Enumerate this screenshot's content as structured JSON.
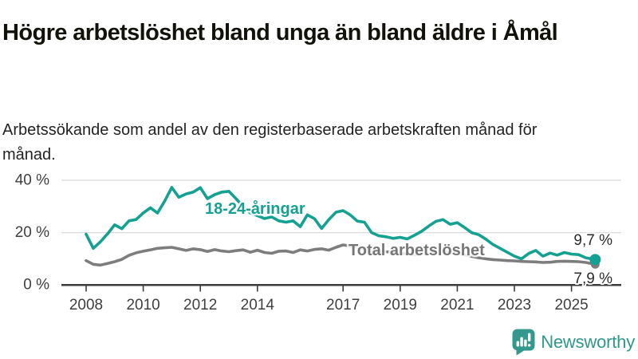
{
  "header": {
    "title": "Högre arbetslöshet bland unga än bland äldre i Åmål",
    "subtitle": "Arbetssökande som andel av den registerbaserade arbetskraften månad för månad."
  },
  "chart_data": {
    "type": "line",
    "title": "Högre arbetslöshet bland unga än bland äldre i Åmål",
    "xlabel": "",
    "ylabel": "",
    "x_unit": "decimal year (monthly share series, 2008–2025)",
    "grid": "horizontal",
    "legend_position": "inline-labels-on-lines",
    "xlim": [
      2007.15,
      2026.75
    ],
    "ylim": [
      0,
      44
    ],
    "x": [
      2008.0,
      2008.25,
      2008.5,
      2008.75,
      2009.0,
      2009.25,
      2009.5,
      2009.75,
      2010.0,
      2010.25,
      2010.5,
      2010.75,
      2011.0,
      2011.25,
      2011.5,
      2011.75,
      2012.0,
      2012.25,
      2012.5,
      2012.75,
      2013.0,
      2013.25,
      2013.5,
      2013.75,
      2014.0,
      2014.25,
      2014.5,
      2014.75,
      2015.0,
      2015.25,
      2015.5,
      2015.75,
      2016.0,
      2016.25,
      2016.5,
      2016.75,
      2017.0,
      2017.25,
      2017.5,
      2017.75,
      2018.0,
      2018.25,
      2018.5,
      2018.75,
      2019.0,
      2019.25,
      2019.5,
      2019.75,
      2020.0,
      2020.25,
      2020.5,
      2020.75,
      2021.0,
      2021.25,
      2021.5,
      2021.75,
      2022.0,
      2022.25,
      2022.5,
      2022.75,
      2023.0,
      2023.25,
      2023.5,
      2023.75,
      2024.0,
      2024.25,
      2024.5,
      2024.75,
      2025.0,
      2025.25,
      2025.5,
      2025.83
    ],
    "series": [
      {
        "name": "18-24-åringar",
        "color": "#14a191",
        "end_label": "9,7 %",
        "end_value": 9.7,
        "values": [
          19.4,
          14.0,
          16.5,
          19.5,
          23.0,
          21.5,
          24.5,
          25.0,
          27.5,
          29.5,
          27.5,
          32.0,
          37.3,
          33.5,
          34.8,
          35.5,
          37.2,
          33.0,
          34.5,
          35.5,
          35.8,
          33.0,
          30.0,
          27.5,
          26.5,
          25.4,
          26.0,
          24.5,
          24.0,
          24.5,
          22.3,
          26.8,
          25.3,
          21.6,
          25.0,
          27.8,
          28.4,
          26.8,
          24.4,
          24.0,
          20.0,
          18.8,
          18.4,
          17.8,
          18.2,
          17.6,
          19.0,
          20.5,
          22.5,
          24.3,
          25.0,
          23.2,
          23.8,
          22.0,
          20.0,
          19.2,
          17.5,
          15.5,
          14.0,
          12.5,
          11.0,
          10.0,
          12.0,
          13.2,
          11.0,
          12.2,
          11.4,
          12.4,
          11.8,
          11.6,
          10.4,
          9.7
        ]
      },
      {
        "name": "Total arbetslöshet",
        "color": "#7d7d7d",
        "label_color": "#767676",
        "end_label": "7,9 %",
        "end_value": 7.9,
        "values": [
          9.3,
          7.9,
          7.6,
          8.2,
          8.9,
          9.8,
          11.3,
          12.3,
          12.9,
          13.4,
          14.0,
          14.2,
          14.4,
          13.8,
          13.2,
          13.8,
          13.5,
          12.8,
          13.5,
          13.0,
          12.7,
          13.1,
          13.4,
          12.5,
          13.3,
          12.4,
          12.1,
          12.9,
          13.0,
          12.4,
          13.4,
          13.0,
          13.6,
          13.8,
          13.3,
          14.4,
          15.3,
          14.9,
          14.4,
          13.9,
          13.4,
          13.0,
          12.7,
          12.4,
          12.1,
          11.9,
          11.7,
          11.8,
          12.0,
          12.5,
          12.7,
          12.4,
          12.0,
          11.5,
          10.9,
          10.4,
          10.0,
          9.7,
          9.5,
          9.3,
          9.2,
          9.0,
          8.9,
          8.8,
          8.6,
          8.7,
          9.0,
          9.1,
          9.0,
          8.9,
          8.6,
          7.9
        ]
      }
    ],
    "x_ticks": [
      {
        "value": 2008,
        "label": "2008"
      },
      {
        "value": 2010,
        "label": "2010"
      },
      {
        "value": 2012,
        "label": "2012"
      },
      {
        "value": 2014,
        "label": "2014"
      },
      {
        "value": 2017,
        "label": "2017"
      },
      {
        "value": 2019,
        "label": "2019"
      },
      {
        "value": 2021,
        "label": "2021"
      },
      {
        "value": 2023,
        "label": "2023"
      },
      {
        "value": 2025,
        "label": "2025"
      }
    ],
    "y_ticks": [
      {
        "value": 40,
        "label": "40 %"
      },
      {
        "value": 20,
        "label": "20 %"
      },
      {
        "value": 0,
        "label": "0 %"
      }
    ]
  },
  "footer": {
    "brand": "Newsworthy"
  },
  "colors": {
    "accent_teal": "#14a191",
    "series_gray": "#7d7d7d",
    "logo_teal": "#35988d",
    "axis": "#3d3d3d",
    "gridline": "#d9d9d9",
    "title_text": "#12120b",
    "subtitle_text": "#232323",
    "end_label_text": "#2b2b2b"
  }
}
